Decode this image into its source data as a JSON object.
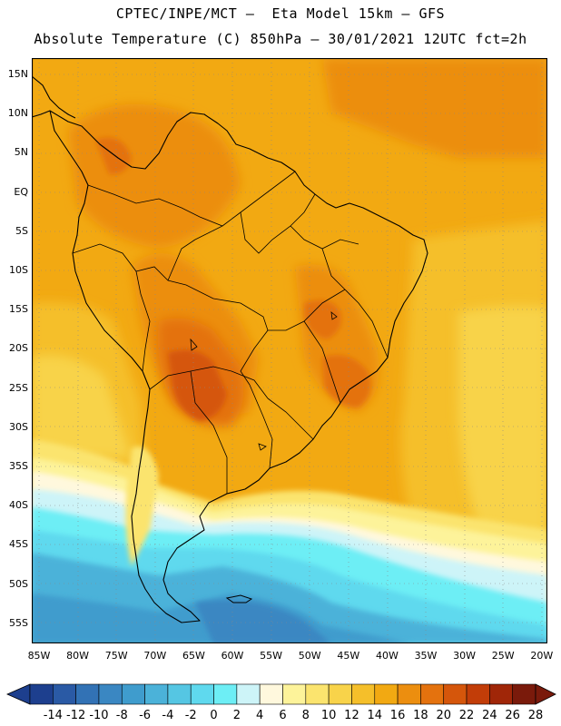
{
  "header": {
    "line1": "CPTEC/INPE/MCT –  Eta Model 15km – GFS",
    "line2": "Absolute Temperature (C) 850hPa – 30/01/2021 12UTC fct=2h"
  },
  "axes": {
    "lat_labels": [
      "15N",
      "10N",
      "5N",
      "EQ",
      "5S",
      "10S",
      "15S",
      "20S",
      "25S",
      "30S",
      "35S",
      "40S",
      "45S",
      "50S",
      "55S"
    ],
    "lon_labels": [
      "85W",
      "80W",
      "75W",
      "70W",
      "65W",
      "60W",
      "55W",
      "50W",
      "45W",
      "40W",
      "35W",
      "30W",
      "25W",
      "20W"
    ]
  },
  "colorbar": {
    "labels": [
      "-14",
      "-12",
      "-10",
      "-8",
      "-6",
      "-4",
      "-2",
      "0",
      "2",
      "4",
      "6",
      "8",
      "10",
      "12",
      "14",
      "16",
      "18",
      "20",
      "22",
      "24",
      "26",
      "28"
    ],
    "colors": [
      "#1d3f8e",
      "#2a5aa5",
      "#3272b5",
      "#3a87c2",
      "#3f9ccd",
      "#4bb2d9",
      "#55c6e3",
      "#5fd9ee",
      "#6deef5",
      "#cdf4f8",
      "#fff8dd",
      "#fdf39a",
      "#fbe46e",
      "#f8d34a",
      "#f5bf2a",
      "#f2a912",
      "#ec8e0f",
      "#e4720e",
      "#d5560b",
      "#c23d08",
      "#a02608",
      "#7a1a0b"
    ]
  }
}
